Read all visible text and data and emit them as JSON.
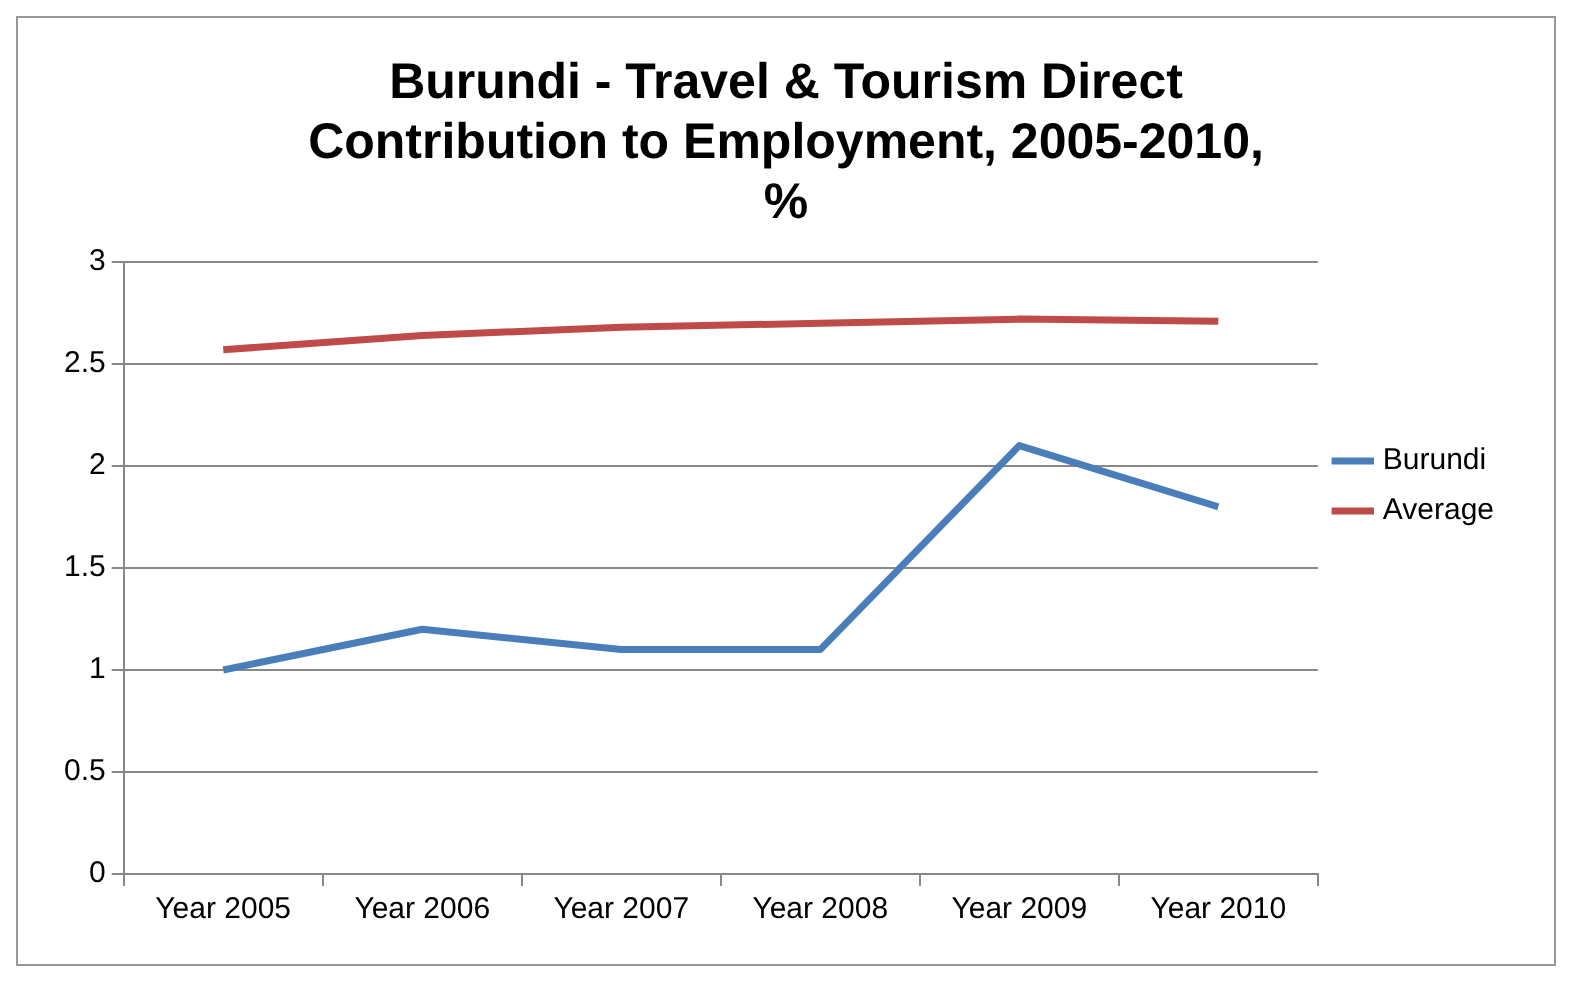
{
  "chart_data": {
    "type": "line",
    "title": "Burundi - Travel & Tourism Direct Contribution to Employment, 2005-2010, %",
    "categories": [
      "Year 2005",
      "Year 2006",
      "Year 2007",
      "Year 2008",
      "Year 2009",
      "Year 2010"
    ],
    "series": [
      {
        "name": "Burundi",
        "color": "#4a7ebb",
        "values": [
          1.0,
          1.2,
          1.1,
          1.1,
          2.1,
          1.8
        ]
      },
      {
        "name": "Average",
        "color": "#be4b48",
        "values": [
          2.57,
          2.64,
          2.68,
          2.7,
          2.72,
          2.71
        ]
      }
    ],
    "ylim": [
      0,
      3
    ],
    "yticks": [
      0,
      0.5,
      1,
      1.5,
      2,
      2.5,
      3
    ],
    "grid": "y",
    "legend": "right",
    "marker": "none",
    "line_style": "solid"
  }
}
